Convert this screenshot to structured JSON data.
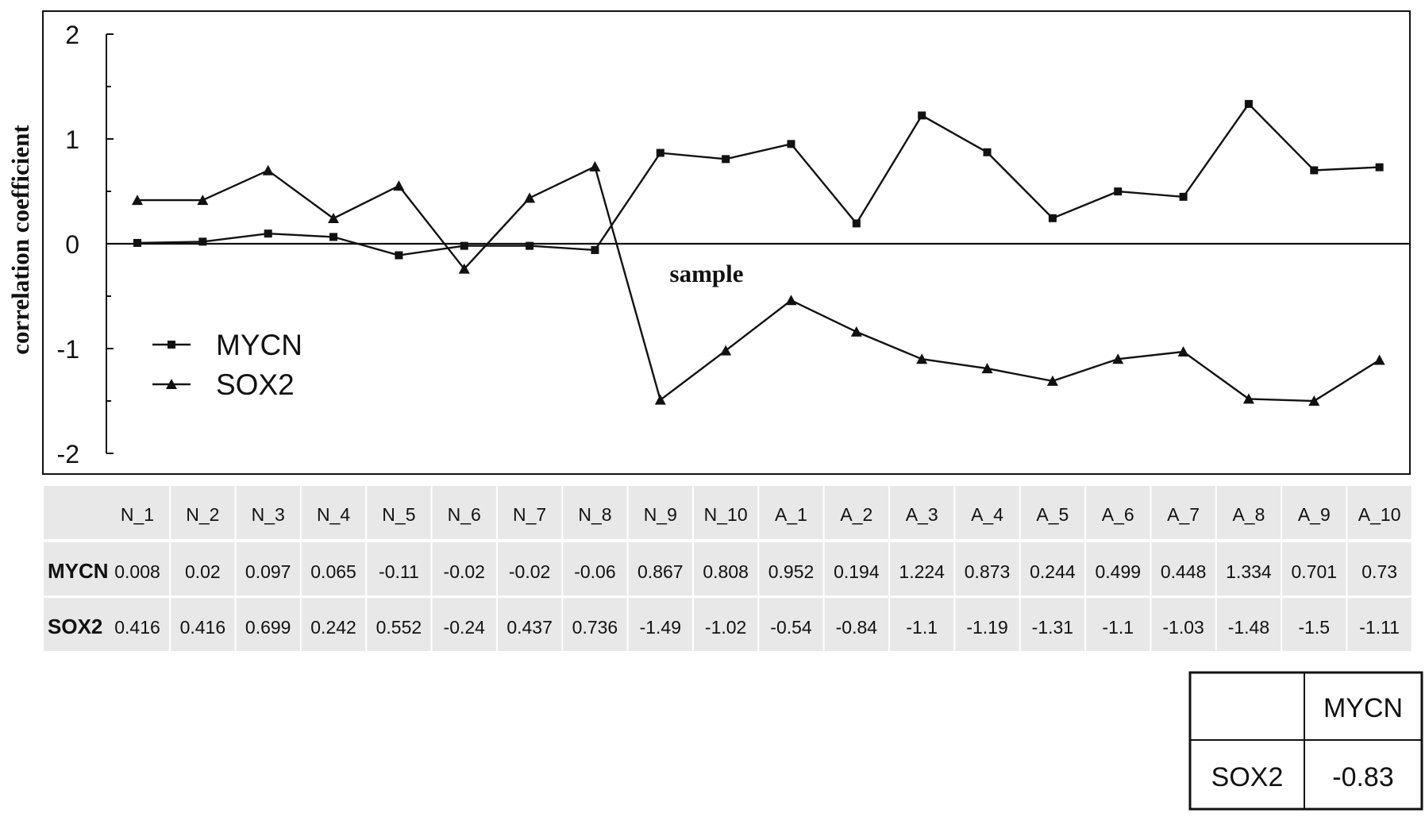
{
  "chart_data": {
    "type": "line",
    "title": "",
    "xlabel": "sample",
    "ylabel": "correlation coefficient",
    "ylim": [
      -2,
      2
    ],
    "yticks": [
      "2",
      "1",
      "0",
      "-1",
      "-2"
    ],
    "ytick_values": [
      2,
      1,
      0,
      -1,
      -2
    ],
    "categories": [
      "N_1",
      "N_2",
      "N_3",
      "N_4",
      "N_5",
      "N_6",
      "N_7",
      "N_8",
      "N_9",
      "N_10",
      "A_1",
      "A_2",
      "A_3",
      "A_4",
      "A_5",
      "A_6",
      "A_7",
      "A_8",
      "A_9",
      "A_10"
    ],
    "series": [
      {
        "name": "MYCN",
        "marker": "square",
        "values": [
          0.008,
          0.02,
          0.097,
          0.065,
          -0.11,
          -0.02,
          -0.02,
          -0.06,
          0.867,
          0.808,
          0.952,
          0.194,
          1.224,
          0.873,
          0.244,
          0.499,
          0.448,
          1.334,
          0.701,
          0.73
        ],
        "labels": [
          "0.008",
          "0.02",
          "0.097",
          "0.065",
          "-0.11",
          "-0.02",
          "-0.02",
          "-0.06",
          "0.867",
          "0.808",
          "0.952",
          "0.194",
          "1.224",
          "0.873",
          "0.244",
          "0.499",
          "0.448",
          "1.334",
          "0.701",
          "0.73"
        ]
      },
      {
        "name": "SOX2",
        "marker": "triangle",
        "values": [
          0.416,
          0.416,
          0.699,
          0.242,
          0.552,
          -0.24,
          0.437,
          0.736,
          -1.49,
          -1.02,
          -0.54,
          -0.84,
          -1.1,
          -1.19,
          -1.31,
          -1.1,
          -1.03,
          -1.48,
          -1.5,
          -1.11
        ],
        "labels": [
          "0.416",
          "0.416",
          "0.699",
          "0.242",
          "0.552",
          "-0.24",
          "0.437",
          "0.736",
          "-1.49",
          "-1.02",
          "-0.54",
          "-0.84",
          "-1.1",
          "-1.19",
          "-1.31",
          "-1.1",
          "-1.03",
          "-1.48",
          "-1.5",
          "-1.11"
        ]
      }
    ],
    "legend_position": "left-center",
    "grid": false,
    "correlation_table": {
      "col_header": "MYCN",
      "row_header": "SOX2",
      "value": "-0.83"
    },
    "colors": {
      "line": "#111111",
      "table_bg": "#e8e8e8",
      "frame": "#111111"
    }
  }
}
